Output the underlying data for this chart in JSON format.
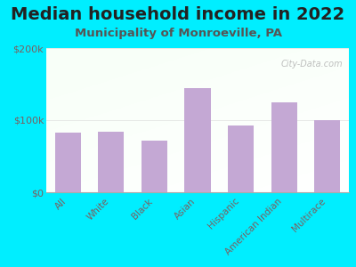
{
  "title": "Median household income in 2022",
  "subtitle": "Municipality of Monroeville, PA",
  "categories": [
    "All",
    "White",
    "Black",
    "Asian",
    "Hispanic",
    "American Indian",
    "Multirace"
  ],
  "values": [
    83000,
    84000,
    72000,
    145000,
    92000,
    125000,
    100000
  ],
  "bar_color": "#c4a8d4",
  "background_outer": "#00eeff",
  "ylim": [
    0,
    200000
  ],
  "yticks": [
    0,
    100000,
    200000
  ],
  "ytick_labels": [
    "$0",
    "$100k",
    "$200k"
  ],
  "title_fontsize": 14,
  "subtitle_fontsize": 9.5,
  "tick_label_color": "#7a6060",
  "watermark": "City-Data.com"
}
